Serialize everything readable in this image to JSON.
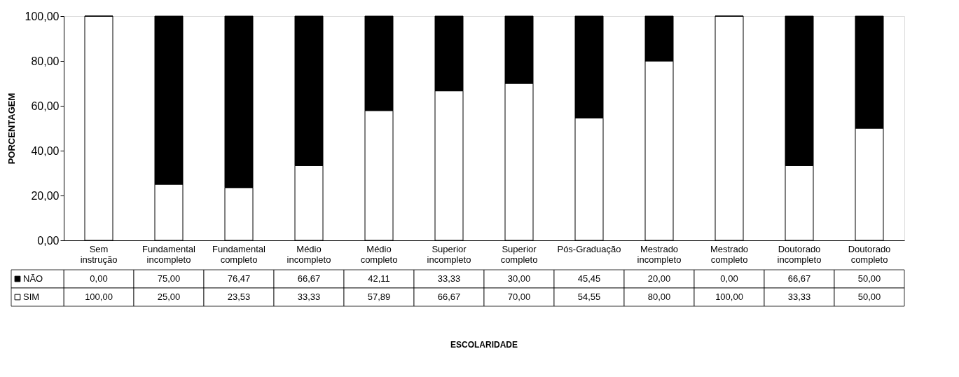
{
  "chart_data": {
    "type": "bar",
    "stacked": true,
    "annotations": [
      "ESCOLARIDADE"
    ],
    "ylabel": "PORCENTAGEM",
    "categories": [
      "Sem instrução",
      "Fundamental incompleto",
      "Fundamental completo",
      "Médio incompleto",
      "Médio completo",
      "Superior incompleto",
      "Superior completo",
      "Pós-Graduação",
      "Mestrado incompleto",
      "Mestrado completo",
      "Doutorado incompleto",
      "Doutorado completo"
    ],
    "series": [
      {
        "name": "SIM",
        "color": "#ffffff",
        "values": [
          100,
          25,
          23.53,
          33.33,
          57.89,
          66.67,
          70,
          54.55,
          80,
          100,
          33.33,
          50
        ],
        "value_labels": [
          "100,00",
          "25,00",
          "23,53",
          "33,33",
          "57,89",
          "66,67",
          "70,00",
          "54,55",
          "80,00",
          "100,00",
          "33,33",
          "50,00"
        ]
      },
      {
        "name": "NÃO",
        "color": "#000000",
        "values": [
          0,
          75,
          76.47,
          66.67,
          42.11,
          33.33,
          30,
          45.45,
          20,
          0,
          66.67,
          50
        ],
        "value_labels": [
          "0,00",
          "75,00",
          "76,47",
          "66,67",
          "42,11",
          "33,33",
          "30,00",
          "45,45",
          "20,00",
          "0,00",
          "66,67",
          "50,00"
        ]
      }
    ],
    "ylim": [
      0,
      100
    ],
    "yticks": [
      {
        "value": 0,
        "label": "0,00"
      },
      {
        "value": 20,
        "label": "20,00"
      },
      {
        "value": 40,
        "label": "40,00"
      },
      {
        "value": 60,
        "label": "60,00"
      },
      {
        "value": 80,
        "label": "80,00"
      },
      {
        "value": 100,
        "label": "100,00"
      }
    ],
    "grid": false,
    "legend": "bottom left"
  }
}
